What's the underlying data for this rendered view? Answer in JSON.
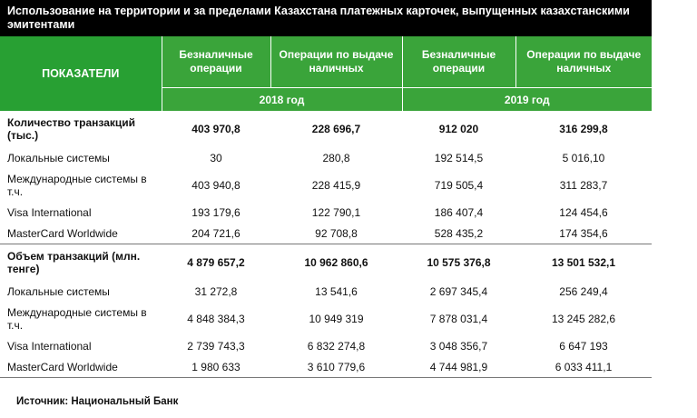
{
  "title": "Использование на территории и за пределами Казахстана платежных карточек, выпущенных казахстанскими эмитентами",
  "header": {
    "indicator": "ПОКАЗАТЕЛИ",
    "columns": [
      "Безналичные операции",
      "Операции по выдаче наличных",
      "Безналичные операции",
      "Операции по выдаче наличных"
    ],
    "years": [
      "2018 год",
      "2019 год"
    ]
  },
  "rows": [
    {
      "label": "Количество транзакций (тыс.)",
      "v": [
        "403 970,8",
        "228 696,7",
        "912 020",
        "316 299,8"
      ]
    },
    {
      "label": "Локальные системы",
      "v": [
        "30",
        "280,8",
        "192 514,5",
        "5 016,10"
      ]
    },
    {
      "label": "Международные системы в т.ч.",
      "v": [
        "403 940,8",
        "228 415,9",
        "719 505,4",
        "311 283,7"
      ]
    },
    {
      "label": "Visa International",
      "v": [
        "193 179,6",
        "122 790,1",
        "186 407,4",
        "124 454,6"
      ]
    },
    {
      "label": "MasterCard Worldwide",
      "v": [
        "204 721,6",
        "92 708,8",
        "528 435,2",
        "174 354,6"
      ]
    },
    {
      "label": "Объем транзакций (млн. тенге)",
      "v": [
        "4 879 657,2",
        "10 962 860,6",
        "10 575 376,8",
        "13 501 532,1"
      ]
    },
    {
      "label": "Локальные системы",
      "v": [
        "31 272,8",
        "13 541,6",
        "2 697 345,4",
        "256 249,4"
      ]
    },
    {
      "label": "Международные системы в т.ч.",
      "v": [
        "4 848 384,3",
        "10 949 319",
        "7 878 031,4",
        "13 245 282,6"
      ]
    },
    {
      "label": "Visa International",
      "v": [
        "2 739 743,3",
        "6 832 274,8",
        "3 048 356,7",
        "6 647 193"
      ]
    },
    {
      "label": "MasterCard Worldwide",
      "v": [
        "1 980 633",
        "3 610 779,6",
        "4 744 981,9",
        "6 033 411,1"
      ]
    }
  ],
  "source": "Источник: Национальный Банк"
}
